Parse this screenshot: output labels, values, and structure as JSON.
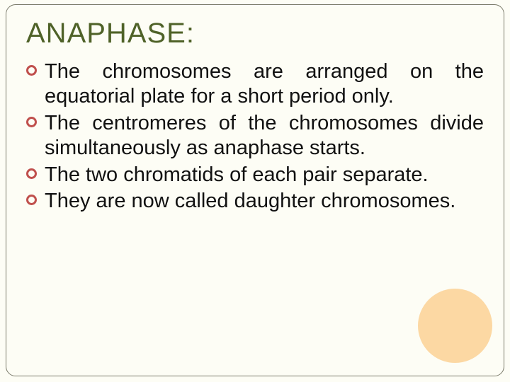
{
  "slide": {
    "title": "ANAPHASE:",
    "title_color": "#4f6228",
    "title_fontsize": 40,
    "background_color": "#fdfdf5",
    "frame_border_color": "#7a7a6a",
    "frame_border_radius": 14,
    "body_fontsize": 29,
    "body_color": "#111111",
    "bullet_ring_color": "#c0504d",
    "bullet_ring_diameter": 15,
    "bullet_ring_thickness": 3,
    "bullets": [
      "The chromosomes are arranged on the equatorial plate for a short period only.",
      "The centromeres of the chromosomes divide simultaneously as anaphase starts.",
      "The two chromatids of each pair separate.",
      "They are now called daughter chromosomes."
    ],
    "decoration": {
      "shape": "circle",
      "fill": "#fcd49a",
      "diameter": 105,
      "opacity": 0.9,
      "position": "bottom-right"
    }
  }
}
